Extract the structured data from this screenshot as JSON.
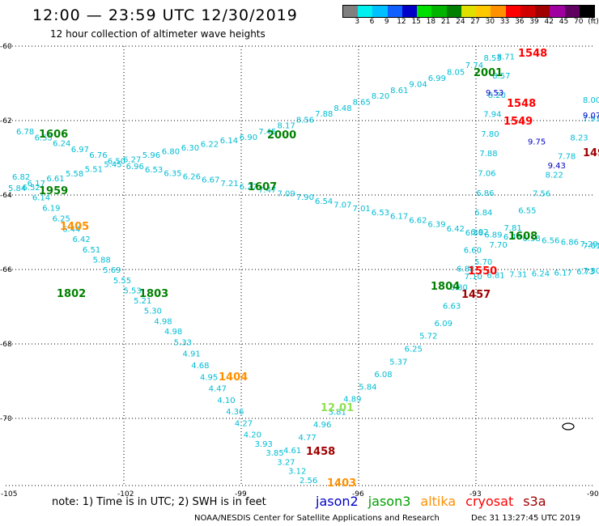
{
  "header": {
    "title": "12:00 — 23:59 UTC 12/30/2019",
    "subtitle": "12 hour collection of altimeter wave heights"
  },
  "colorbar": {
    "colors": [
      "#808080",
      "#00f0f0",
      "#00c0ff",
      "#1060ff",
      "#0000c8",
      "#00e000",
      "#00b400",
      "#008000",
      "#e0e000",
      "#ffc800",
      "#ff9000",
      "#ff0000",
      "#d00000",
      "#a00000",
      "#a000a0",
      "#600060",
      "#000000"
    ],
    "ticks": [
      "3",
      "6",
      "9",
      "12",
      "15",
      "18",
      "21",
      "24",
      "27",
      "30",
      "33",
      "36",
      "39",
      "42",
      "45",
      "70",
      "(ft)"
    ]
  },
  "map": {
    "lon_ticks": [
      "-105",
      "-102",
      "-99",
      "-96",
      "-93",
      "-90"
    ],
    "lat_ticks": [
      "-60",
      "-62",
      "-64",
      "-66",
      "-68",
      "-70"
    ],
    "tracks": [
      {
        "color": "#00bcd4",
        "labels": [
          "6.78",
          "6.55",
          "6.24",
          "6.97",
          "6.76",
          "6.50",
          "6.96",
          "6.53",
          "6.35",
          "6.26",
          "6.67",
          "7.21",
          "6.27",
          "7.47",
          "7.09",
          "7.90",
          "6.54",
          "7.07",
          "7.01",
          "6.53",
          "6.17",
          "6.62",
          "6.39",
          "6.42",
          "6.86",
          "6.89",
          "6.46",
          "6.58",
          "6.56",
          "6.86",
          "7.29",
          "7.61"
        ]
      },
      {
        "color": "#00bcd4",
        "labels": [
          "6.82",
          "6.52",
          "6.14",
          "6.19",
          "6.25",
          "6.44",
          "6.42",
          "6.51",
          "5.88",
          "5.69",
          "5.55",
          "5.53",
          "5.21",
          "5.30",
          "4.98",
          "4.98",
          "5.33",
          "4.91",
          "4.68",
          "4.95",
          "4.47",
          "4.10",
          "4.36",
          "4.27",
          "4.20",
          "3.93",
          "3.85",
          "3.27",
          "3.12",
          "2.56"
        ]
      },
      {
        "color": "#00bcd4",
        "labels": [
          "5.84",
          "6.17",
          "6.61",
          "5.58",
          "5.51",
          "5.45",
          "6.27",
          "5.96",
          "6.80",
          "6.30",
          "6.22",
          "6.14",
          "6.90",
          "7.45",
          "8.17",
          "8.56",
          "7.88",
          "8.48",
          "8.65",
          "8.20",
          "8.61",
          "9.04",
          "6.99",
          "8.05",
          "7.74",
          "8.53",
          "8.71",
          "8.57",
          "8.20",
          "7.94",
          "7.80",
          "7.88",
          "7.06",
          "6.86",
          "6.84",
          "6.92",
          "6.60",
          "6.88",
          "6.80",
          "6.63",
          "6.09",
          "5.72",
          "6.25",
          "5.37",
          "6.08",
          "5.84",
          "4.89",
          "3.81",
          "4.96",
          "4.77",
          "4.61"
        ]
      },
      {
        "color": "#00bcd4",
        "labels": [
          "8.00",
          "7.91",
          "8.23",
          "7.78",
          "8.22",
          "7.56",
          "6.55",
          "7.81",
          "7.70",
          "5.70",
          "7.10",
          "6.81",
          "7.31",
          "6.24",
          "6.17",
          "6.73",
          "7.30"
        ]
      },
      {
        "color": "#0000c8",
        "labels": [
          "9.53",
          "9.75",
          "9.43",
          "9.07"
        ]
      }
    ],
    "time_labels": [
      {
        "text": "1606",
        "color": "#008000"
      },
      {
        "text": "1959",
        "color": "#008000"
      },
      {
        "text": "1607",
        "color": "#008000"
      },
      {
        "text": "2000",
        "color": "#008000"
      },
      {
        "text": "2001",
        "color": "#008000"
      },
      {
        "text": "1608",
        "color": "#008000"
      },
      {
        "text": "1802",
        "color": "#008000"
      },
      {
        "text": "1803",
        "color": "#008000"
      },
      {
        "text": "1804",
        "color": "#008000"
      },
      {
        "text": "12.01",
        "color": "#90e050"
      },
      {
        "text": "1405",
        "color": "#ff9000"
      },
      {
        "text": "1404",
        "color": "#ff9000"
      },
      {
        "text": "1403",
        "color": "#ff9000"
      },
      {
        "text": "1548",
        "color": "#ff0000"
      },
      {
        "text": "1548",
        "color": "#ff0000"
      },
      {
        "text": "1549",
        "color": "#ff0000"
      },
      {
        "text": "1550",
        "color": "#ff0000"
      },
      {
        "text": "1457",
        "color": "#a00000"
      },
      {
        "text": "1458",
        "color": "#a00000"
      },
      {
        "text": "149",
        "color": "#a00000"
      }
    ]
  },
  "footer": {
    "note": "note:  1) Time is in UTC; 2) SWH is in feet",
    "legend": [
      {
        "text": "jason2",
        "color": "#0000c8"
      },
      {
        "text": "jason3",
        "color": "#00a000"
      },
      {
        "text": "altika",
        "color": "#ff9000"
      },
      {
        "text": "cryosat",
        "color": "#ff0000"
      },
      {
        "text": "s3a",
        "color": "#a00000"
      }
    ],
    "credit": "NOAA/NESDIS Center for Satellite Applications and Research",
    "timestamp": "Dec 31 13:27:45 UTC 2019"
  }
}
